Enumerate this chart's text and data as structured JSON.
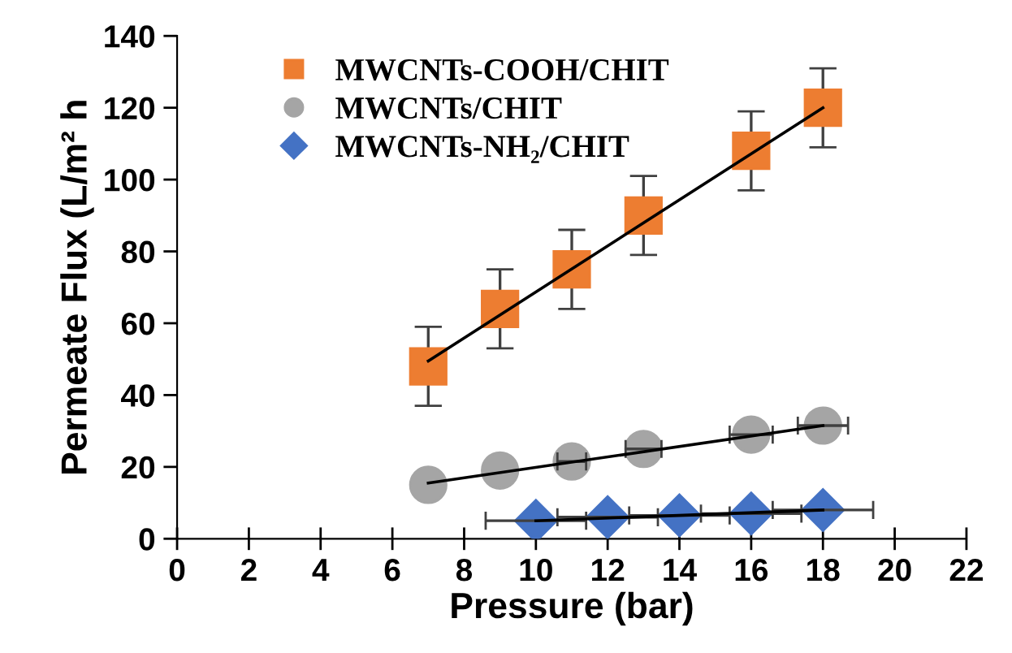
{
  "chart_data": {
    "type": "scatter",
    "xlabel": "Pressure (bar)",
    "ylabel": "Permeate Flux (L/m² h",
    "xlim": [
      0,
      22
    ],
    "ylim": [
      0,
      140
    ],
    "xticks": [
      0,
      2,
      4,
      6,
      8,
      10,
      12,
      14,
      16,
      18,
      20,
      22
    ],
    "yticks": [
      0,
      20,
      40,
      60,
      80,
      100,
      120,
      140
    ],
    "grid": false,
    "legend": "top left",
    "series": [
      {
        "name": "MWCNTs-COOH/CHIT",
        "color": "#ed7d31",
        "marker": "square",
        "x": [
          7,
          9,
          11,
          13,
          16,
          18
        ],
        "values": [
          48,
          64,
          75,
          90,
          108,
          120
        ],
        "errors": [
          11,
          11,
          11,
          11,
          11,
          11
        ]
      },
      {
        "name": "MWCNTs/CHIT",
        "color": "#a5a5a5",
        "marker": "circle",
        "x": [
          7,
          9,
          11,
          13,
          16,
          18
        ],
        "values": [
          15,
          19,
          21.5,
          25,
          29,
          31.5
        ],
        "xerrors": [
          null,
          null,
          0.4,
          0.5,
          0.6,
          0.7
        ]
      },
      {
        "name": "MWCNTs-NH₂/CHIT",
        "color": "#4472c4",
        "marker": "diamond",
        "x": [
          10,
          12,
          14,
          16,
          18
        ],
        "values": [
          5,
          6,
          6.5,
          7,
          8
        ],
        "xerrors": [
          1.4,
          1.4,
          1.4,
          1.4,
          1.4
        ]
      },
      {
        "type": "line",
        "color": "#000000",
        "x": [
          7,
          18
        ],
        "values": [
          49.5,
          120
        ]
      },
      {
        "type": "line",
        "color": "#000000",
        "x": [
          7,
          18
        ],
        "values": [
          15.5,
          31.5
        ]
      },
      {
        "type": "line",
        "color": "#000000",
        "x": [
          10,
          18
        ],
        "values": [
          5,
          8
        ]
      }
    ]
  }
}
